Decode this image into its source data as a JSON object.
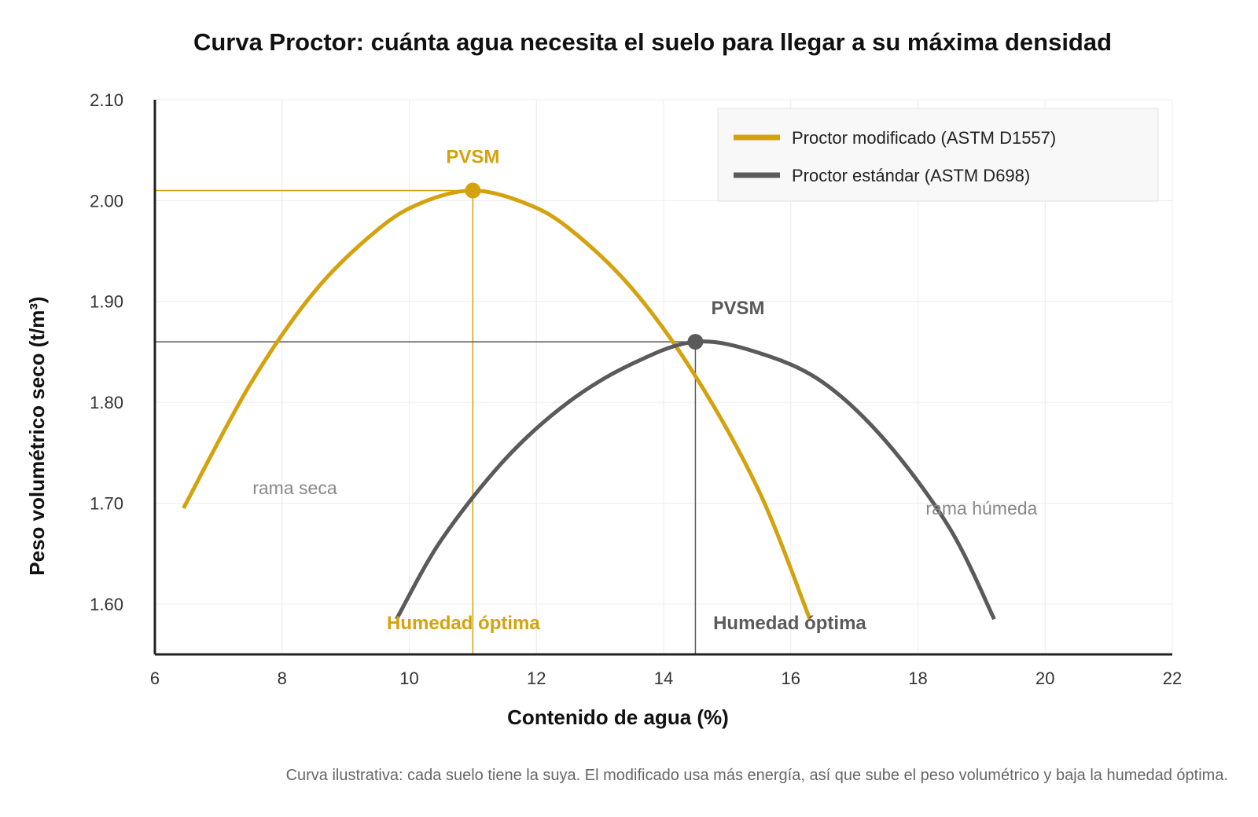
{
  "title": "Curva Proctor: cuánta agua necesita el suelo para llegar a su máxima densidad",
  "note": "Curva ilustrativa: cada suelo tiene la suya. El modificado usa más energía, así que sube el peso volumétrico y baja la humedad óptima.",
  "colors": {
    "modified": "#D4A20C",
    "standard": "#5A5A5A",
    "grid": "#ECECEC",
    "axis": "#222222"
  },
  "chart_data": {
    "type": "line",
    "xlabel": "Contenido de agua (%)",
    "ylabel": "Peso volumétrico seco (t/m³)",
    "xlim": [
      6,
      22
    ],
    "ylim": [
      1.55,
      2.1
    ],
    "x_ticks": [
      6,
      8,
      10,
      12,
      14,
      16,
      18,
      20,
      22
    ],
    "y_ticks": [
      1.6,
      1.7,
      1.8,
      1.9,
      2.0,
      2.1
    ],
    "x_tick_labels": [
      "6",
      "8",
      "10",
      "12",
      "14",
      "16",
      "18",
      "20",
      "22"
    ],
    "y_tick_labels": [
      "1.60",
      "1.70",
      "1.80",
      "1.90",
      "2.00",
      "2.10"
    ],
    "grid": true,
    "legend_position": "top-right",
    "series": [
      {
        "name": "Proctor modificado (ASTM D1557)",
        "color": "#D4A20C",
        "x": [
          6.45,
          7.5,
          8.5,
          9.5,
          10.2,
          11.0,
          11.8,
          12.5,
          13.5,
          14.5,
          15.5,
          16.3
        ],
        "y": [
          1.695,
          1.818,
          1.909,
          1.971,
          1.998,
          2.01,
          1.998,
          1.973,
          1.913,
          1.826,
          1.712,
          1.585
        ],
        "peak": {
          "x": 11.0,
          "y": 2.01,
          "label": "PVSM",
          "optimum_label": "Humedad óptima"
        }
      },
      {
        "name": "Proctor estándar (ASTM D698)",
        "color": "#5A5A5A",
        "x": [
          9.8,
          10.5,
          11.5,
          12.5,
          13.5,
          14.5,
          15.5,
          16.5,
          17.5,
          18.5,
          19.2
        ],
        "y": [
          1.585,
          1.663,
          1.743,
          1.8,
          1.838,
          1.86,
          1.849,
          1.82,
          1.761,
          1.675,
          1.585
        ],
        "peak": {
          "x": 14.5,
          "y": 1.86,
          "label": "PVSM",
          "optimum_label": "Humedad óptima"
        }
      }
    ],
    "annotations": [
      {
        "text": "rama seca",
        "x": 8.2,
        "y": 1.715
      },
      {
        "text": "rama húmeda",
        "x": 19.0,
        "y": 1.695
      }
    ]
  }
}
